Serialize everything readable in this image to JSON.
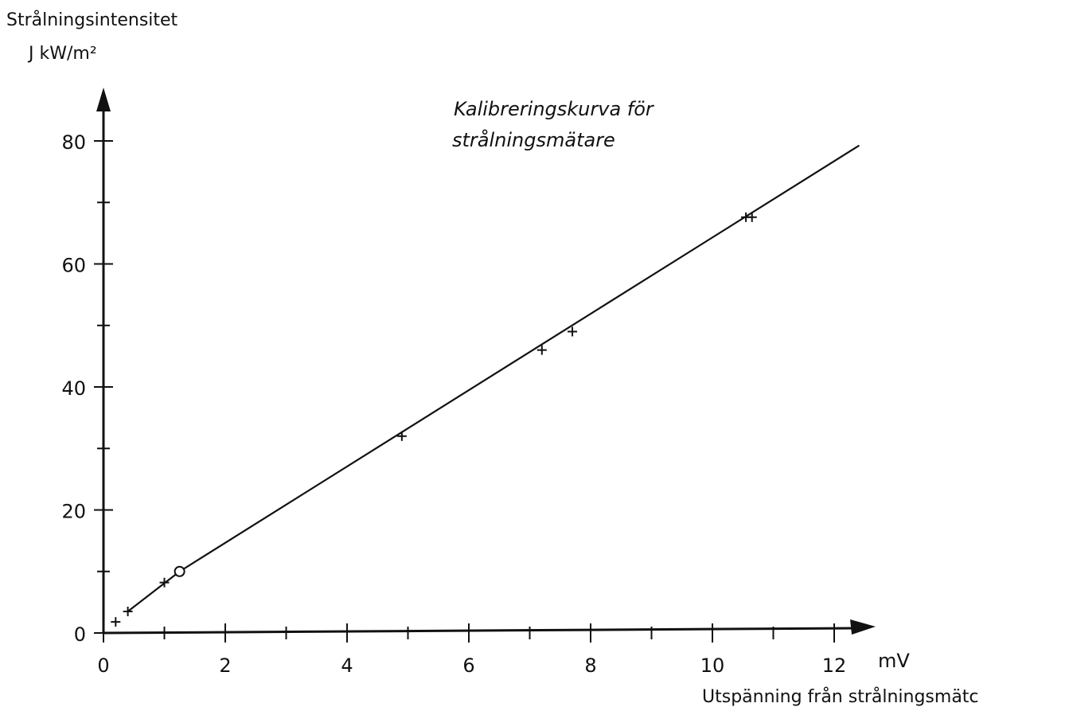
{
  "chart_data": {
    "type": "scatter",
    "title_lines": [
      "Kalibreringskurva för",
      "strålningsmätare"
    ],
    "ylabel_lines": [
      "Strålningsintensitet",
      "J kW/m²"
    ],
    "xlabel": "Utspänning från strålningsmätc",
    "x_unit": "mV",
    "x_ticks": [
      0,
      2,
      4,
      6,
      8,
      10,
      12
    ],
    "y_ticks": [
      0,
      20,
      40,
      60,
      80
    ],
    "xlim": [
      0,
      12.6
    ],
    "ylim": [
      0,
      88
    ],
    "grid": false,
    "legend": "none",
    "series": [
      {
        "points": [
          {
            "x": 0.2,
            "y": 1.8,
            "marker": "plus"
          },
          {
            "x": 0.4,
            "y": 3.5,
            "marker": "plus"
          },
          {
            "x": 1.0,
            "y": 8.2,
            "marker": "plus"
          },
          {
            "x": 1.25,
            "y": 10.0,
            "marker": "circle"
          },
          {
            "x": 4.9,
            "y": 32.0,
            "marker": "plus"
          },
          {
            "x": 7.2,
            "y": 46.0,
            "marker": "plus"
          },
          {
            "x": 7.7,
            "y": 49.0,
            "marker": "plus"
          },
          {
            "x": 10.55,
            "y": 67.6,
            "marker": "plus"
          },
          {
            "x": 10.65,
            "y": 67.6,
            "marker": "plus"
          }
        ]
      }
    ],
    "fit_line": {
      "x": [
        0.4,
        1.25,
        12.4
      ],
      "y": [
        3.5,
        10.0,
        79.2
      ]
    }
  }
}
